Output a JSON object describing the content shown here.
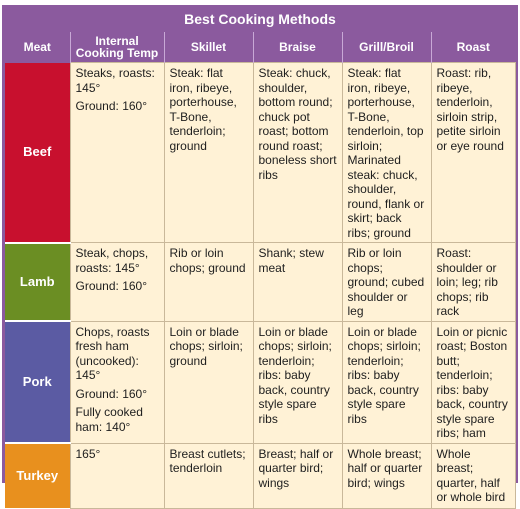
{
  "title": "Best Cooking Methods",
  "headers": [
    "Meat",
    "Internal Cooking Temp",
    "Skillet",
    "Braise",
    "Grill/Broil",
    "Roast"
  ],
  "rows": [
    {
      "meat": "Beef",
      "color": "#c8102e",
      "temp": [
        "Steaks, roasts: 145°",
        "Ground: 160°"
      ],
      "skillet": "Steak: flat iron, ribeye, porterhouse, T-Bone, tenderloin; ground",
      "braise": "Steak: chuck, shoulder, bottom round; chuck pot roast; bottom round roast; boneless short ribs",
      "grill": "Steak: flat iron, ribeye, porterhouse, T-Bone, tenderloin, top sirloin; Marinated steak: chuck, shoulder, round, flank or skirt; back ribs; ground",
      "roast": "Roast: rib, ribeye, tenderloin, sirloin strip, petite sirloin or eye round"
    },
    {
      "meat": "Lamb",
      "color": "#6b8e23",
      "temp": [
        "Steak, chops, roasts: 145°",
        "Ground: 160°"
      ],
      "skillet": "Rib or loin chops; ground",
      "braise": "Shank; stew meat",
      "grill": "Rib or loin chops; ground; cubed shoulder or leg",
      "roast": "Roast: shoulder or loin; leg; rib chops; rib rack"
    },
    {
      "meat": "Pork",
      "color": "#5b5ba3",
      "temp": [
        "Chops, roasts fresh ham (uncooked): 145°",
        "Ground: 160°",
        "Fully cooked ham: 140°"
      ],
      "skillet": "Loin or blade chops; sirloin; ground",
      "braise": "Loin or blade chops; sirloin; tenderloin; ribs: baby back, country style spare ribs",
      "grill": "Loin or blade chops; sirloin; tenderloin; ribs: baby back, country style spare ribs",
      "roast": "Loin or picnic roast; Boston butt; tenderloin; ribs: baby back, country style spare ribs; ham"
    },
    {
      "meat": "Turkey",
      "color": "#e8901e",
      "temp": [
        "165°"
      ],
      "skillet": "Breast cutlets; tenderloin",
      "braise": "Breast; half or quarter bird; wings",
      "grill": "Whole breast; half or quarter bird; wings",
      "roast": "Whole breast; quarter, half or whole bird"
    }
  ]
}
